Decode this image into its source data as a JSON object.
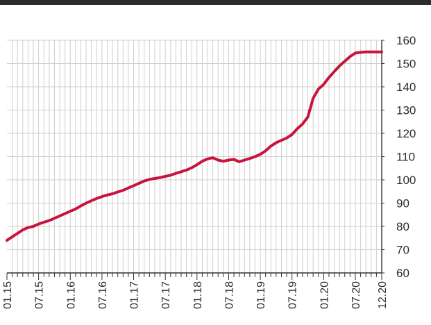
{
  "theme": {
    "line_color": "#c8143c",
    "grid_color": "#cfcfcf",
    "axis_color": "#333333",
    "text_color": "#2e2e2e",
    "top_bar_color": "#2b2b2b"
  },
  "chart_data": {
    "type": "line",
    "title": "",
    "xlabel": "",
    "ylabel": "",
    "ylim": [
      60,
      160
    ],
    "y_ticks": [
      60,
      70,
      80,
      90,
      100,
      110,
      120,
      130,
      140,
      150,
      160
    ],
    "y_tick_labels": [
      "60",
      "70",
      "80",
      "90",
      "100",
      "110",
      "120",
      "130",
      "140",
      "150",
      "160"
    ],
    "y_axis_position": "right",
    "grid": true,
    "x_ticks": [
      "01.15",
      "07.15",
      "01.16",
      "07.16",
      "01.17",
      "07.17",
      "01.18",
      "07.18",
      "01.19",
      "07.19",
      "01.20",
      "07.20",
      "12.20"
    ],
    "series": [
      {
        "x": [
          "01.15",
          "02.15",
          "03.15",
          "04.15",
          "05.15",
          "06.15",
          "07.15",
          "08.15",
          "09.15",
          "10.15",
          "11.15",
          "12.15",
          "01.16",
          "02.16",
          "03.16",
          "04.16",
          "05.16",
          "06.16",
          "07.16",
          "08.16",
          "09.16",
          "10.16",
          "11.16",
          "12.16",
          "01.17",
          "02.17",
          "03.17",
          "04.17",
          "05.17",
          "06.17",
          "07.17",
          "08.17",
          "09.17",
          "10.17",
          "11.17",
          "12.17",
          "01.18",
          "02.18",
          "03.18",
          "04.18",
          "05.18",
          "06.18",
          "07.18",
          "08.18",
          "09.18",
          "10.18",
          "11.18",
          "12.18",
          "01.19",
          "02.19",
          "03.19",
          "04.19",
          "05.19",
          "06.19",
          "07.19",
          "08.19",
          "09.19",
          "10.19",
          "11.19",
          "12.19",
          "01.20",
          "02.20",
          "03.20",
          "04.20",
          "05.20",
          "06.20",
          "07.20",
          "08.20",
          "09.20",
          "10.20",
          "11.20",
          "12.20"
        ],
        "values": [
          74,
          75.5,
          77,
          78.5,
          79.5,
          80,
          81,
          81.8,
          82.5,
          83.5,
          84.5,
          85.5,
          86.5,
          87.5,
          88.8,
          90,
          91,
          92,
          92.8,
          93.5,
          94,
          94.8,
          95.5,
          96.5,
          97.5,
          98.5,
          99.5,
          100.2,
          100.6,
          101,
          101.5,
          102,
          102.8,
          103.5,
          104.2,
          105.2,
          106.5,
          108,
          109,
          109.5,
          108.5,
          108,
          108.5,
          108.8,
          107.8,
          108.5,
          109.2,
          110,
          111,
          112.5,
          114.5,
          116,
          117,
          118,
          119.5,
          122,
          124,
          127,
          135,
          139,
          141,
          144,
          146.5,
          149,
          151,
          153,
          154.5,
          154.8,
          155,
          155,
          155,
          155
        ]
      }
    ]
  }
}
